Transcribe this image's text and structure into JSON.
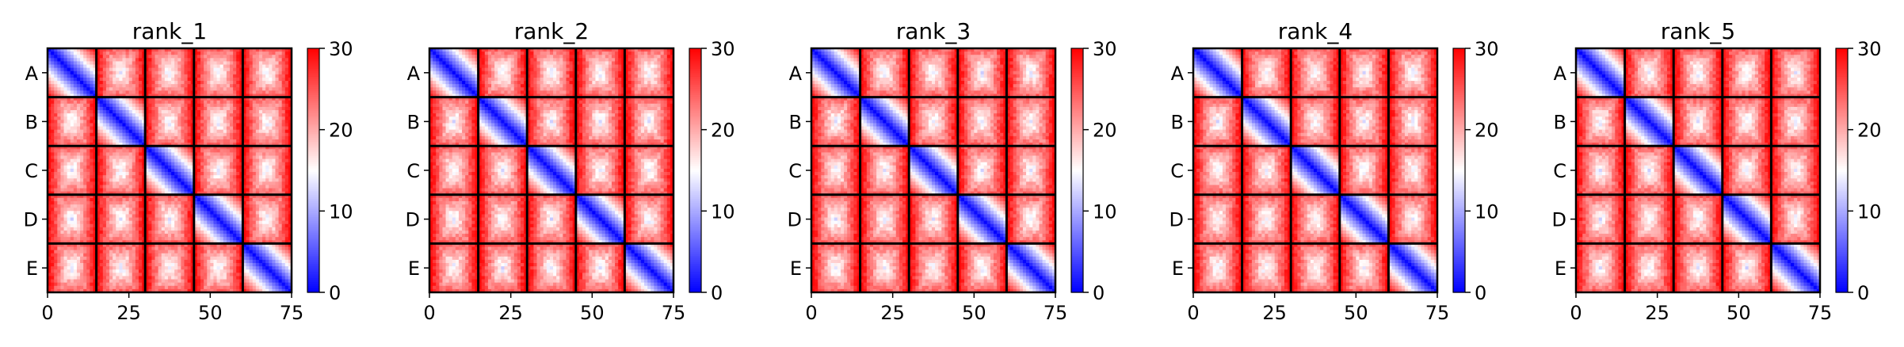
{
  "figure": {
    "background": "#ffffff",
    "colormap": [
      "#0000ff",
      "#ffffff",
      "#ff0000"
    ]
  },
  "chart_data": [
    {
      "type": "heatmap",
      "title": "rank_1",
      "xlabel": "",
      "ylabel": "",
      "xlim": [
        0,
        75
      ],
      "xticks": [
        0,
        25,
        50,
        75
      ],
      "block_labels": [
        "A",
        "B",
        "C",
        "D",
        "E"
      ],
      "block_size": 15,
      "colorbar": {
        "range": [
          0,
          30
        ],
        "ticks": [
          0,
          10,
          20,
          30
        ]
      },
      "grid": false,
      "block_pattern": "near-zero distance on the main diagonal rising to ~28 at the block corners; off-diagonal blocks mostly red (~24-28) with pale-blue centres (~12-18)"
    },
    {
      "type": "heatmap",
      "title": "rank_2",
      "xlabel": "",
      "ylabel": "",
      "xlim": [
        0,
        75
      ],
      "xticks": [
        0,
        25,
        50,
        75
      ],
      "block_labels": [
        "A",
        "B",
        "C",
        "D",
        "E"
      ],
      "block_size": 15,
      "colorbar": {
        "range": [
          0,
          30
        ],
        "ticks": [
          0,
          10,
          20,
          30
        ]
      },
      "grid": false,
      "block_pattern": "near-zero distance on the main diagonal rising to ~28 at the block corners; off-diagonal blocks mostly red (~24-28) with pale-blue centres (~12-18)"
    },
    {
      "type": "heatmap",
      "title": "rank_3",
      "xlabel": "",
      "ylabel": "",
      "xlim": [
        0,
        75
      ],
      "xticks": [
        0,
        25,
        50,
        75
      ],
      "block_labels": [
        "A",
        "B",
        "C",
        "D",
        "E"
      ],
      "block_size": 15,
      "colorbar": {
        "range": [
          0,
          30
        ],
        "ticks": [
          0,
          10,
          20,
          30
        ]
      },
      "grid": false,
      "block_pattern": "near-zero distance on the main diagonal rising to ~28 at the block corners; off-diagonal blocks mostly red (~24-28) with pale-blue centres (~12-18)"
    },
    {
      "type": "heatmap",
      "title": "rank_4",
      "xlabel": "",
      "ylabel": "",
      "xlim": [
        0,
        75
      ],
      "xticks": [
        0,
        25,
        50,
        75
      ],
      "block_labels": [
        "A",
        "B",
        "C",
        "D",
        "E"
      ],
      "block_size": 15,
      "colorbar": {
        "range": [
          0,
          30
        ],
        "ticks": [
          0,
          10,
          20,
          30
        ]
      },
      "grid": false,
      "block_pattern": "near-zero distance on the main diagonal rising to ~28 at the block corners; off-diagonal blocks mostly red (~24-28) with pale-blue centres (~12-18)"
    },
    {
      "type": "heatmap",
      "title": "rank_5",
      "xlabel": "",
      "ylabel": "",
      "xlim": [
        0,
        75
      ],
      "xticks": [
        0,
        25,
        50,
        75
      ],
      "block_labels": [
        "A",
        "B",
        "C",
        "D",
        "E"
      ],
      "block_size": 15,
      "colorbar": {
        "range": [
          0,
          30
        ],
        "ticks": [
          0,
          10,
          20,
          30
        ]
      },
      "grid": false,
      "block_pattern": "near-zero distance on the main diagonal rising to ~28 at the block corners; off-diagonal blocks mostly red (~24-28) with pale-blue centres (~12-18)"
    }
  ]
}
